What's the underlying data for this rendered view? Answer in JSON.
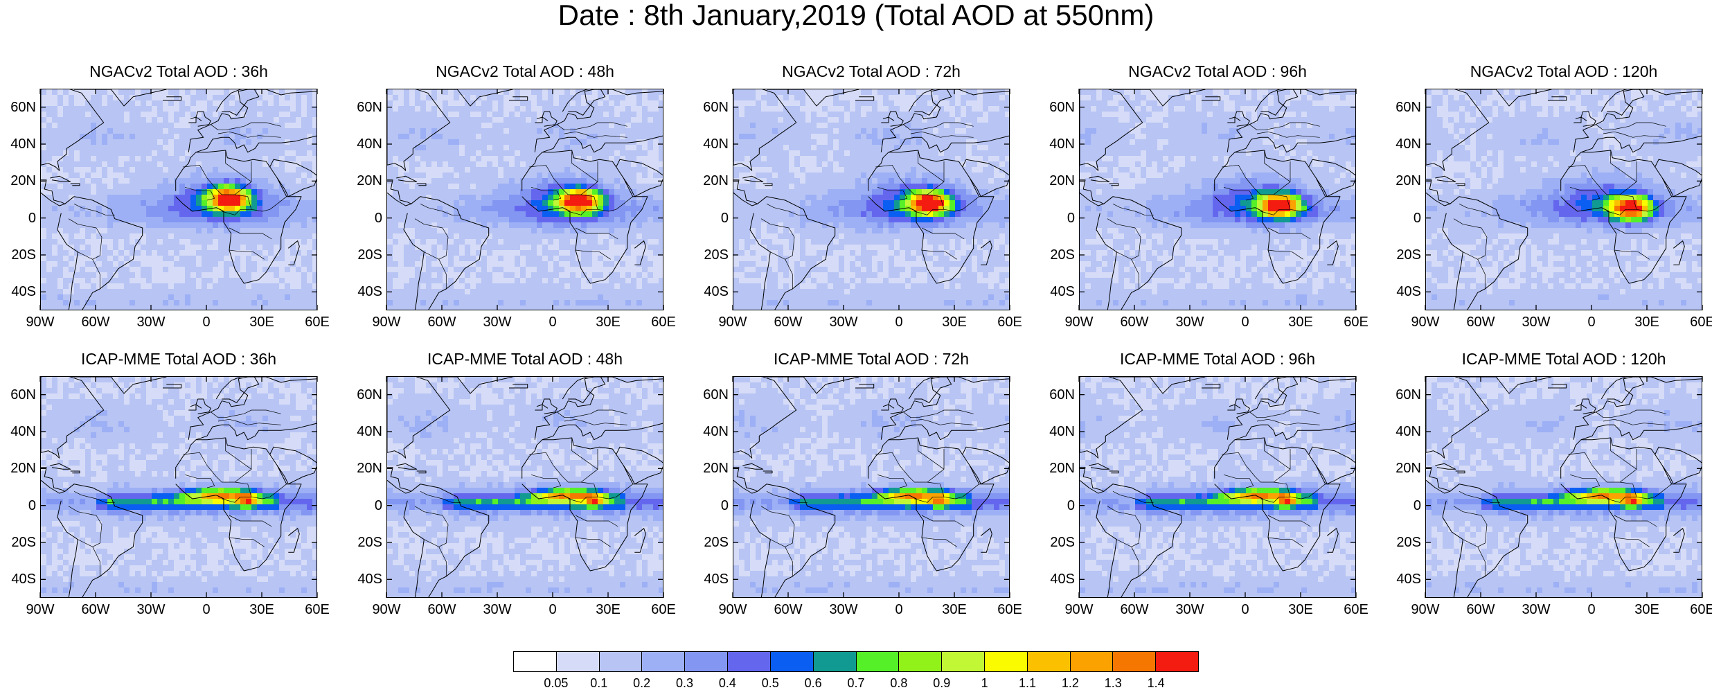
{
  "title": "Date : 8th January,2019 (Total AOD at 550nm)",
  "axes": {
    "lat_ticks": [
      "60N",
      "40N",
      "20N",
      "0",
      "20S",
      "40S"
    ],
    "lon_ticks": [
      "90W",
      "60W",
      "30W",
      "0",
      "30E",
      "60E"
    ]
  },
  "panels": [
    {
      "title": "NGACv2 Total AOD : 36h",
      "model": "NGACv2",
      "lead": "36h",
      "row": 0,
      "col": 0
    },
    {
      "title": "NGACv2 Total AOD : 48h",
      "model": "NGACv2",
      "lead": "48h",
      "row": 0,
      "col": 1
    },
    {
      "title": "NGACv2 Total AOD : 72h",
      "model": "NGACv2",
      "lead": "72h",
      "row": 0,
      "col": 2
    },
    {
      "title": "NGACv2 Total AOD : 96h",
      "model": "NGACv2",
      "lead": "96h",
      "row": 0,
      "col": 3
    },
    {
      "title": "NGACv2 Total AOD : 120h",
      "model": "NGACv2",
      "lead": "120h",
      "row": 0,
      "col": 4
    },
    {
      "title": "ICAP-MME Total AOD : 36h",
      "model": "ICAP-MME",
      "lead": "36h",
      "row": 1,
      "col": 0
    },
    {
      "title": "ICAP-MME Total AOD : 48h",
      "model": "ICAP-MME",
      "lead": "48h",
      "row": 1,
      "col": 1
    },
    {
      "title": "ICAP-MME Total AOD : 72h",
      "model": "ICAP-MME",
      "lead": "72h",
      "row": 1,
      "col": 2
    },
    {
      "title": "ICAP-MME Total AOD : 96h",
      "model": "ICAP-MME",
      "lead": "96h",
      "row": 1,
      "col": 3
    },
    {
      "title": "ICAP-MME Total AOD : 120h",
      "model": "ICAP-MME",
      "lead": "120h",
      "row": 1,
      "col": 4
    }
  ],
  "colorbar": {
    "labels": [
      "0.05",
      "0.1",
      "0.2",
      "0.3",
      "0.4",
      "0.5",
      "0.6",
      "0.7",
      "0.8",
      "0.9",
      "1",
      "1.1",
      "1.2",
      "1.3",
      "1.4"
    ],
    "colors": [
      "#ffffff",
      "#d6dcf7",
      "#b7c4f4",
      "#9db0f5",
      "#8296f2",
      "#6467ee",
      "#0b5ef2",
      "#119a91",
      "#56f029",
      "#90f218",
      "#c2f736",
      "#fbfb00",
      "#fbc100",
      "#fba100",
      "#f67700",
      "#f41b10"
    ]
  }
}
